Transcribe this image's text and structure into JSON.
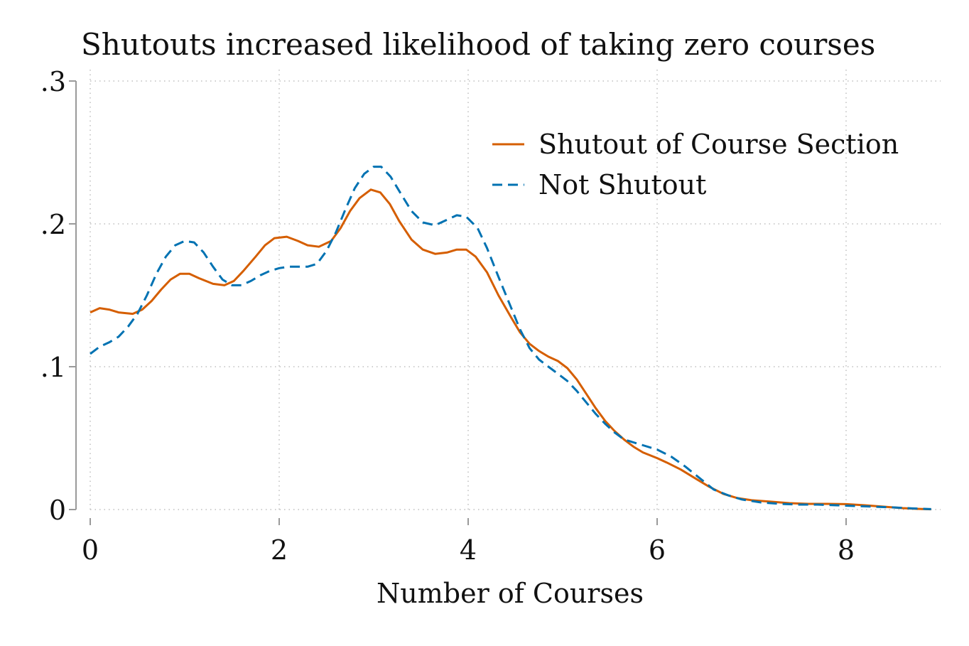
{
  "chart_data": {
    "type": "line",
    "title": "Shutouts increased likelihood of taking zero courses",
    "xlabel": "Number of Courses",
    "ylabel": "",
    "xlim": [
      0,
      9
    ],
    "ylim": [
      0,
      0.3
    ],
    "x_ticks": [
      0,
      2,
      4,
      6,
      8
    ],
    "x_tick_labels": [
      "0",
      "2",
      "4",
      "6",
      "8"
    ],
    "y_ticks": [
      0,
      0.1,
      0.2,
      0.3
    ],
    "y_tick_labels": [
      "0",
      ".1",
      ".2",
      ".3"
    ],
    "grid": true,
    "legend_position": "top-right",
    "series": [
      {
        "name": "Shutout of Course Section",
        "color": "#d55e00",
        "style": "solid",
        "points": [
          [
            0.0,
            0.138
          ],
          [
            0.1,
            0.141
          ],
          [
            0.2,
            0.14
          ],
          [
            0.3,
            0.138
          ],
          [
            0.45,
            0.137
          ],
          [
            0.55,
            0.14
          ],
          [
            0.65,
            0.146
          ],
          [
            0.75,
            0.154
          ],
          [
            0.85,
            0.161
          ],
          [
            0.95,
            0.165
          ],
          [
            1.05,
            0.165
          ],
          [
            1.15,
            0.162
          ],
          [
            1.3,
            0.158
          ],
          [
            1.42,
            0.157
          ],
          [
            1.52,
            0.16
          ],
          [
            1.62,
            0.167
          ],
          [
            1.75,
            0.177
          ],
          [
            1.85,
            0.185
          ],
          [
            1.95,
            0.19
          ],
          [
            2.08,
            0.191
          ],
          [
            2.2,
            0.188
          ],
          [
            2.3,
            0.185
          ],
          [
            2.42,
            0.184
          ],
          [
            2.55,
            0.188
          ],
          [
            2.65,
            0.197
          ],
          [
            2.75,
            0.209
          ],
          [
            2.85,
            0.218
          ],
          [
            2.97,
            0.224
          ],
          [
            3.07,
            0.222
          ],
          [
            3.17,
            0.214
          ],
          [
            3.27,
            0.202
          ],
          [
            3.4,
            0.189
          ],
          [
            3.52,
            0.182
          ],
          [
            3.65,
            0.179
          ],
          [
            3.78,
            0.18
          ],
          [
            3.88,
            0.182
          ],
          [
            3.98,
            0.182
          ],
          [
            4.08,
            0.177
          ],
          [
            4.2,
            0.166
          ],
          [
            4.32,
            0.15
          ],
          [
            4.45,
            0.135
          ],
          [
            4.55,
            0.124
          ],
          [
            4.65,
            0.116
          ],
          [
            4.75,
            0.111
          ],
          [
            4.85,
            0.107
          ],
          [
            4.95,
            0.104
          ],
          [
            5.05,
            0.099
          ],
          [
            5.15,
            0.091
          ],
          [
            5.25,
            0.081
          ],
          [
            5.35,
            0.071
          ],
          [
            5.45,
            0.062
          ],
          [
            5.55,
            0.055
          ],
          [
            5.65,
            0.049
          ],
          [
            5.75,
            0.044
          ],
          [
            5.85,
            0.04
          ],
          [
            6.0,
            0.036
          ],
          [
            6.1,
            0.033
          ],
          [
            6.25,
            0.028
          ],
          [
            6.4,
            0.022
          ],
          [
            6.55,
            0.016
          ],
          [
            6.7,
            0.011
          ],
          [
            6.85,
            0.008
          ],
          [
            7.0,
            0.0065
          ],
          [
            7.2,
            0.0055
          ],
          [
            7.4,
            0.0045
          ],
          [
            7.6,
            0.004
          ],
          [
            7.8,
            0.004
          ],
          [
            8.0,
            0.0038
          ],
          [
            8.2,
            0.003
          ],
          [
            8.4,
            0.002
          ],
          [
            8.6,
            0.001
          ],
          [
            8.75,
            0.0005
          ],
          [
            8.9,
            0.0002
          ]
        ]
      },
      {
        "name": "Not Shutout",
        "color": "#0072b2",
        "style": "dashed",
        "points": [
          [
            0.0,
            0.109
          ],
          [
            0.1,
            0.114
          ],
          [
            0.2,
            0.117
          ],
          [
            0.3,
            0.121
          ],
          [
            0.4,
            0.128
          ],
          [
            0.5,
            0.137
          ],
          [
            0.6,
            0.15
          ],
          [
            0.7,
            0.165
          ],
          [
            0.8,
            0.177
          ],
          [
            0.9,
            0.185
          ],
          [
            1.0,
            0.188
          ],
          [
            1.1,
            0.187
          ],
          [
            1.2,
            0.18
          ],
          [
            1.3,
            0.17
          ],
          [
            1.4,
            0.161
          ],
          [
            1.5,
            0.157
          ],
          [
            1.6,
            0.157
          ],
          [
            1.7,
            0.16
          ],
          [
            1.8,
            0.164
          ],
          [
            1.9,
            0.167
          ],
          [
            2.0,
            0.169
          ],
          [
            2.1,
            0.17
          ],
          [
            2.2,
            0.17
          ],
          [
            2.3,
            0.17
          ],
          [
            2.4,
            0.172
          ],
          [
            2.5,
            0.181
          ],
          [
            2.6,
            0.194
          ],
          [
            2.7,
            0.21
          ],
          [
            2.8,
            0.225
          ],
          [
            2.9,
            0.235
          ],
          [
            3.0,
            0.24
          ],
          [
            3.08,
            0.24
          ],
          [
            3.18,
            0.233
          ],
          [
            3.28,
            0.222
          ],
          [
            3.4,
            0.209
          ],
          [
            3.52,
            0.201
          ],
          [
            3.65,
            0.199
          ],
          [
            3.78,
            0.203
          ],
          [
            3.88,
            0.206
          ],
          [
            3.98,
            0.205
          ],
          [
            4.1,
            0.197
          ],
          [
            4.2,
            0.183
          ],
          [
            4.32,
            0.163
          ],
          [
            4.45,
            0.142
          ],
          [
            4.55,
            0.126
          ],
          [
            4.65,
            0.113
          ],
          [
            4.75,
            0.105
          ],
          [
            4.85,
            0.1
          ],
          [
            4.95,
            0.095
          ],
          [
            5.05,
            0.09
          ],
          [
            5.15,
            0.083
          ],
          [
            5.25,
            0.075
          ],
          [
            5.35,
            0.067
          ],
          [
            5.45,
            0.06
          ],
          [
            5.55,
            0.054
          ],
          [
            5.65,
            0.049
          ],
          [
            5.75,
            0.047
          ],
          [
            5.85,
            0.045
          ],
          [
            6.0,
            0.042
          ],
          [
            6.15,
            0.037
          ],
          [
            6.3,
            0.03
          ],
          [
            6.45,
            0.022
          ],
          [
            6.6,
            0.014
          ],
          [
            6.75,
            0.01
          ],
          [
            6.9,
            0.007
          ],
          [
            7.1,
            0.005
          ],
          [
            7.3,
            0.004
          ],
          [
            7.5,
            0.0035
          ],
          [
            7.7,
            0.0035
          ],
          [
            7.9,
            0.003
          ],
          [
            8.1,
            0.0025
          ],
          [
            8.3,
            0.002
          ],
          [
            8.5,
            0.0015
          ],
          [
            8.7,
            0.0008
          ],
          [
            8.9,
            0.0003
          ]
        ]
      }
    ]
  }
}
